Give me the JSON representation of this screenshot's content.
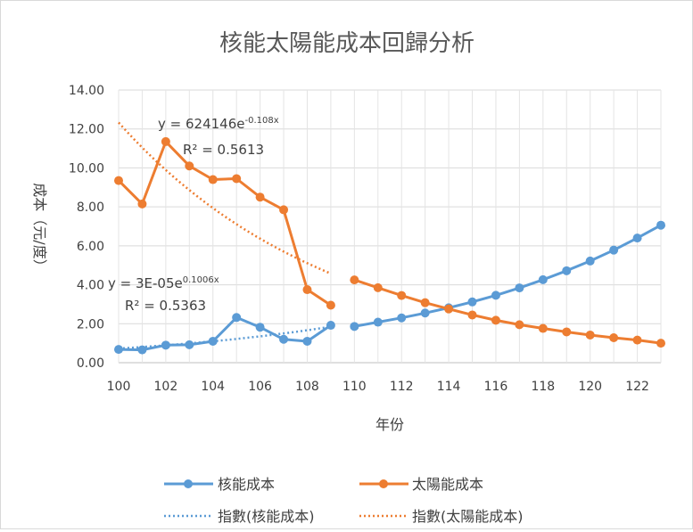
{
  "chart_data": {
    "type": "line",
    "title": "核能太陽能成本回歸分析",
    "xlabel": "年份",
    "ylabel": "成本（元/度）",
    "xlim": [
      100,
      123
    ],
    "ylim": [
      0,
      14
    ],
    "x_ticks": [
      "100",
      "102",
      "104",
      "106",
      "108",
      "110",
      "112",
      "114",
      "116",
      "118",
      "120",
      "122"
    ],
    "y_ticks": [
      "0.00",
      "2.00",
      "4.00",
      "6.00",
      "8.00",
      "10.00",
      "12.00",
      "14.00"
    ],
    "grid": true,
    "legend_position": "bottom",
    "series": [
      {
        "name": "核能成本",
        "color": "#5b9bd5",
        "segments": [
          {
            "x": [
              100,
              101,
              102,
              103,
              104,
              105,
              106,
              107,
              108,
              109
            ],
            "y": [
              0.68,
              0.66,
              0.9,
              0.92,
              1.1,
              2.32,
              1.82,
              1.2,
              1.1,
              1.92
            ]
          },
          {
            "x": [
              110,
              111,
              112,
              113,
              114,
              115,
              116,
              117,
              118,
              119,
              120,
              121,
              122,
              123
            ],
            "y": [
              1.86,
              2.08,
              2.3,
              2.55,
              2.82,
              3.12,
              3.46,
              3.84,
              4.26,
              4.72,
              5.22,
              5.78,
              6.4,
              7.06
            ]
          }
        ]
      },
      {
        "name": "太陽能成本",
        "color": "#ed7d31",
        "segments": [
          {
            "x": [
              100,
              101,
              102,
              103,
              104,
              105,
              106,
              107,
              108,
              109
            ],
            "y": [
              9.35,
              8.15,
              11.35,
              10.1,
              9.4,
              9.45,
              8.5,
              7.85,
              3.75,
              2.95
            ]
          },
          {
            "x": [
              110,
              111,
              112,
              113,
              114,
              115,
              116,
              117,
              118,
              119,
              120,
              121,
              122,
              123
            ],
            "y": [
              4.25,
              3.85,
              3.45,
              3.08,
              2.76,
              2.45,
              2.18,
              1.95,
              1.76,
              1.58,
              1.42,
              1.28,
              1.16,
              1.0
            ]
          }
        ]
      }
    ],
    "trendlines": [
      {
        "name": "指數(核能成本)",
        "type": "exponential",
        "color": "#5b9bd5",
        "x_range": [
          100,
          109
        ],
        "equation": "y = 3E-05e0.1006x",
        "r2": "R² = 0.5363"
      },
      {
        "name": "指數(太陽能成本)",
        "type": "exponential",
        "color": "#ed7d31",
        "x_range": [
          100,
          109
        ],
        "equation": "y = 624146e-0.108x",
        "r2": "R² = 0.5613"
      }
    ]
  },
  "legend": {
    "items": [
      {
        "label": "核能成本",
        "style": "marker-line",
        "color": "#5b9bd5"
      },
      {
        "label": "太陽能成本",
        "style": "marker-line",
        "color": "#ed7d31"
      },
      {
        "label": "指數(核能成本)",
        "style": "dotted",
        "color": "#5b9bd5"
      },
      {
        "label": "指數(太陽能成本)",
        "style": "dotted",
        "color": "#ed7d31"
      }
    ]
  },
  "annotations": {
    "solar_eq_base": "y = 624146e",
    "solar_eq_exp": "-0.108x",
    "solar_r2": "R² = 0.5613",
    "nuclear_eq_base": "y = 3E-05e",
    "nuclear_eq_exp": "0.1006x",
    "nuclear_r2": "R² = 0.5363"
  }
}
